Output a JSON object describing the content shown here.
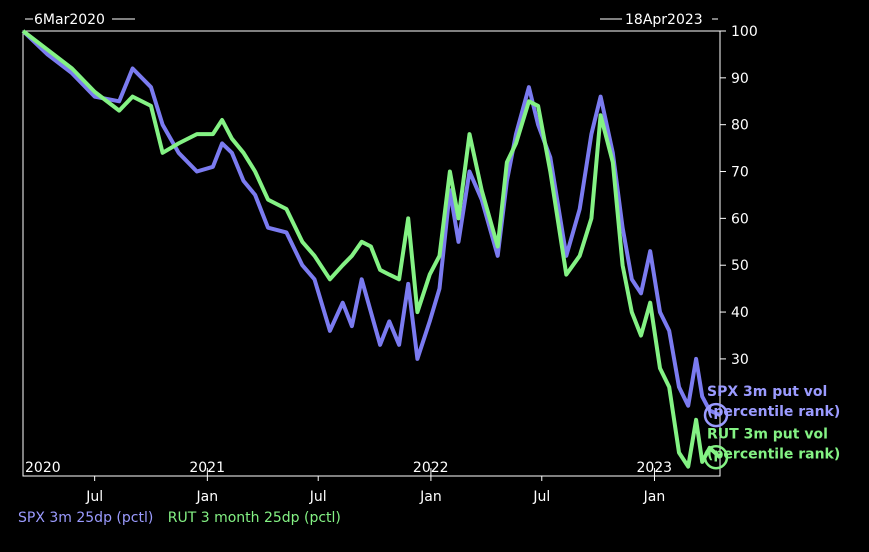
{
  "chart_data": {
    "type": "line",
    "start_label": "6Mar2020",
    "end_label": "18Apr2023",
    "y_ticks": [
      100,
      90,
      80,
      70,
      60,
      50,
      40,
      30
    ],
    "ylim": [
      5,
      100
    ],
    "x_range": [
      "2020-03-06",
      "2023-04-18"
    ],
    "year_labels": [
      {
        "label": "2020",
        "date": "2020-01-01"
      },
      {
        "label": "2021",
        "date": "2021-01-01"
      },
      {
        "label": "2022",
        "date": "2022-01-01"
      },
      {
        "label": "2023",
        "date": "2023-01-01"
      }
    ],
    "month_labels": [
      {
        "label": "Jul",
        "date": "2020-07-01"
      },
      {
        "label": "Jan",
        "date": "2021-01-01"
      },
      {
        "label": "Jul",
        "date": "2021-07-01"
      },
      {
        "label": "Jan",
        "date": "2022-01-01"
      },
      {
        "label": "Jul",
        "date": "2022-07-01"
      },
      {
        "label": "Jan",
        "date": "2023-01-01"
      }
    ],
    "series": [
      {
        "name": "SPX 3m 25dp (pctl)",
        "color": "#7b7bf0",
        "points": [
          [
            "2020-03-06",
            100
          ],
          [
            "2020-04-15",
            95
          ],
          [
            "2020-05-25",
            91
          ],
          [
            "2020-07-01",
            86
          ],
          [
            "2020-08-10",
            85
          ],
          [
            "2020-09-01",
            92
          ],
          [
            "2020-10-01",
            88
          ],
          [
            "2020-10-20",
            80
          ],
          [
            "2020-11-15",
            74
          ],
          [
            "2020-12-15",
            70
          ],
          [
            "2021-01-10",
            71
          ],
          [
            "2021-01-25",
            76
          ],
          [
            "2021-02-10",
            74
          ],
          [
            "2021-03-01",
            68
          ],
          [
            "2021-03-20",
            65
          ],
          [
            "2021-04-10",
            58
          ],
          [
            "2021-05-10",
            57
          ],
          [
            "2021-06-05",
            50
          ],
          [
            "2021-06-25",
            47
          ],
          [
            "2021-07-20",
            36
          ],
          [
            "2021-08-10",
            42
          ],
          [
            "2021-08-25",
            37
          ],
          [
            "2021-09-10",
            47
          ],
          [
            "2021-09-25",
            40
          ],
          [
            "2021-10-10",
            33
          ],
          [
            "2021-10-25",
            38
          ],
          [
            "2021-11-10",
            33
          ],
          [
            "2021-11-25",
            46
          ],
          [
            "2021-12-10",
            30
          ],
          [
            "2021-12-30",
            38
          ],
          [
            "2022-01-15",
            45
          ],
          [
            "2022-02-01",
            66
          ],
          [
            "2022-02-15",
            55
          ],
          [
            "2022-03-05",
            70
          ],
          [
            "2022-03-25",
            64
          ],
          [
            "2022-04-20",
            52
          ],
          [
            "2022-05-05",
            68
          ],
          [
            "2022-05-20",
            78
          ],
          [
            "2022-06-10",
            88
          ],
          [
            "2022-06-25",
            80
          ],
          [
            "2022-07-15",
            73
          ],
          [
            "2022-08-10",
            52
          ],
          [
            "2022-09-01",
            62
          ],
          [
            "2022-09-20",
            78
          ],
          [
            "2022-10-05",
            86
          ],
          [
            "2022-10-25",
            74
          ],
          [
            "2022-11-10",
            58
          ],
          [
            "2022-11-25",
            47
          ],
          [
            "2022-12-10",
            44
          ],
          [
            "2022-12-25",
            53
          ],
          [
            "2023-01-10",
            40
          ],
          [
            "2023-01-25",
            36
          ],
          [
            "2023-02-10",
            24
          ],
          [
            "2023-02-25",
            20
          ],
          [
            "2023-03-10",
            30
          ],
          [
            "2023-03-20",
            22
          ],
          [
            "2023-04-01",
            19
          ],
          [
            "2023-04-18",
            18
          ]
        ]
      },
      {
        "name": "RUT 3 month 25dp (pctl)",
        "color": "#84f284",
        "points": [
          [
            "2020-03-06",
            100
          ],
          [
            "2020-04-15",
            96
          ],
          [
            "2020-05-25",
            92
          ],
          [
            "2020-07-01",
            87
          ],
          [
            "2020-08-10",
            83
          ],
          [
            "2020-09-01",
            86
          ],
          [
            "2020-10-01",
            84
          ],
          [
            "2020-10-20",
            74
          ],
          [
            "2020-11-15",
            76
          ],
          [
            "2020-12-15",
            78
          ],
          [
            "2021-01-10",
            78
          ],
          [
            "2021-01-25",
            81
          ],
          [
            "2021-02-10",
            77
          ],
          [
            "2021-03-01",
            74
          ],
          [
            "2021-03-20",
            70
          ],
          [
            "2021-04-10",
            64
          ],
          [
            "2021-05-10",
            62
          ],
          [
            "2021-06-05",
            55
          ],
          [
            "2021-06-25",
            52
          ],
          [
            "2021-07-20",
            47
          ],
          [
            "2021-08-10",
            50
          ],
          [
            "2021-08-25",
            52
          ],
          [
            "2021-09-10",
            55
          ],
          [
            "2021-09-25",
            54
          ],
          [
            "2021-10-10",
            49
          ],
          [
            "2021-10-25",
            48
          ],
          [
            "2021-11-10",
            47
          ],
          [
            "2021-11-25",
            60
          ],
          [
            "2021-12-10",
            40
          ],
          [
            "2021-12-30",
            48
          ],
          [
            "2022-01-15",
            52
          ],
          [
            "2022-02-01",
            70
          ],
          [
            "2022-02-15",
            60
          ],
          [
            "2022-03-05",
            78
          ],
          [
            "2022-03-25",
            66
          ],
          [
            "2022-04-20",
            54
          ],
          [
            "2022-05-05",
            72
          ],
          [
            "2022-05-20",
            76
          ],
          [
            "2022-06-10",
            85
          ],
          [
            "2022-06-25",
            84
          ],
          [
            "2022-07-15",
            70
          ],
          [
            "2022-08-10",
            48
          ],
          [
            "2022-09-01",
            52
          ],
          [
            "2022-09-20",
            60
          ],
          [
            "2022-10-05",
            82
          ],
          [
            "2022-10-25",
            72
          ],
          [
            "2022-11-10",
            50
          ],
          [
            "2022-11-25",
            40
          ],
          [
            "2022-12-10",
            35
          ],
          [
            "2022-12-25",
            42
          ],
          [
            "2023-01-10",
            28
          ],
          [
            "2023-01-25",
            24
          ],
          [
            "2023-02-10",
            10
          ],
          [
            "2023-02-25",
            7
          ],
          [
            "2023-03-10",
            17
          ],
          [
            "2023-03-20",
            8
          ],
          [
            "2023-04-01",
            11
          ],
          [
            "2023-04-18",
            9
          ]
        ]
      }
    ],
    "annotations": [
      {
        "series": 0,
        "line1": "SPX 3m put vol",
        "line2": "(percentile rank)",
        "color": "#9b9bff"
      },
      {
        "series": 1,
        "line1": "RUT 3m put vol",
        "line2": "(percentile rank)",
        "color": "#84f284"
      }
    ]
  }
}
